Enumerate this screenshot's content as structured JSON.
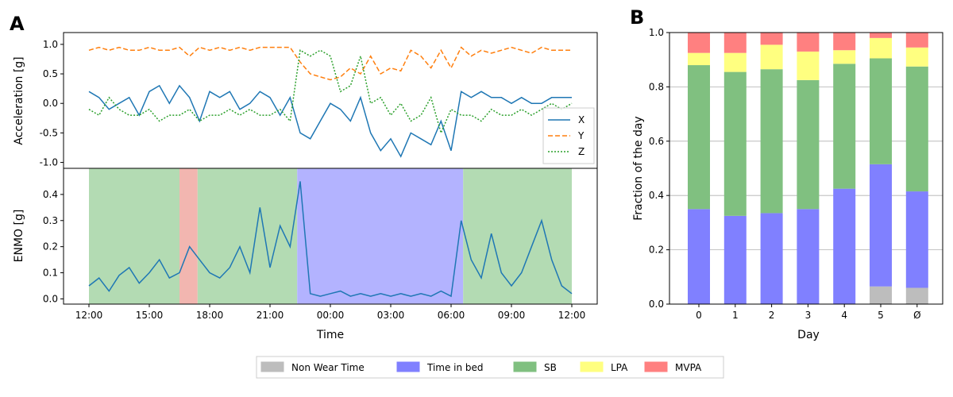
{
  "panels": {
    "a": "A",
    "b": "B"
  },
  "colors": {
    "x": "#1f77b4",
    "y": "#ff7f0e",
    "z": "#2ca02c",
    "nonwear": "#bdbdbd",
    "bed": "#8080ff",
    "sb": "#80c080",
    "lpa": "#ffff80",
    "mvpa": "#ff8080"
  },
  "legend_bottom": {
    "items": [
      {
        "key": "nonwear",
        "label": "Non Wear Time"
      },
      {
        "key": "bed",
        "label": "Time in bed"
      },
      {
        "key": "sb",
        "label": "SB"
      },
      {
        "key": "lpa",
        "label": "LPA"
      },
      {
        "key": "mvpa",
        "label": "MVPA"
      }
    ]
  },
  "chart_data": [
    {
      "type": "line",
      "title": "",
      "xlabel": "",
      "ylabel": "Acceleration [g]",
      "ylim": [
        -1.1,
        1.2
      ],
      "yticks": [
        "-1.0",
        "-0.5",
        "0.0",
        "0.5",
        "1.0"
      ],
      "yticks_values": [
        -1.0,
        -0.5,
        0.0,
        0.5,
        1.0
      ],
      "legend": {
        "placement": "lower-right",
        "entries": [
          "X",
          "Y",
          "Z"
        ]
      },
      "x_time": [
        "12:00",
        "12:30",
        "13:00",
        "13:30",
        "14:00",
        "14:30",
        "15:00",
        "15:30",
        "16:00",
        "16:30",
        "17:00",
        "17:30",
        "18:00",
        "18:30",
        "19:00",
        "19:30",
        "20:00",
        "20:30",
        "21:00",
        "21:30",
        "22:00",
        "22:30",
        "23:00",
        "23:30",
        "00:00",
        "00:30",
        "01:00",
        "01:30",
        "02:00",
        "02:30",
        "03:00",
        "03:30",
        "04:00",
        "04:30",
        "05:00",
        "05:30",
        "06:00",
        "06:30",
        "07:00",
        "07:30",
        "08:00",
        "08:30",
        "09:00",
        "09:30",
        "10:00",
        "10:30",
        "11:00",
        "11:30",
        "12:00"
      ],
      "series": [
        {
          "name": "X",
          "values": [
            0.2,
            0.1,
            -0.1,
            0.0,
            0.1,
            -0.2,
            0.2,
            0.3,
            0.0,
            0.3,
            0.1,
            -0.3,
            0.2,
            0.1,
            0.2,
            -0.1,
            0.0,
            0.2,
            0.1,
            -0.2,
            0.1,
            -0.5,
            -0.6,
            -0.3,
            0.0,
            -0.1,
            -0.3,
            0.1,
            -0.5,
            -0.8,
            -0.6,
            -0.9,
            -0.5,
            -0.6,
            -0.7,
            -0.3,
            -0.8,
            0.2,
            0.1,
            0.2,
            0.1,
            0.1,
            0.0,
            0.1,
            0.0,
            0.0,
            0.1,
            0.1,
            0.1
          ]
        },
        {
          "name": "Y",
          "values": [
            0.9,
            0.95,
            0.9,
            0.95,
            0.9,
            0.9,
            0.95,
            0.9,
            0.9,
            0.95,
            0.8,
            0.95,
            0.9,
            0.95,
            0.9,
            0.95,
            0.9,
            0.95,
            0.95,
            0.95,
            0.95,
            0.7,
            0.5,
            0.45,
            0.4,
            0.45,
            0.6,
            0.5,
            0.8,
            0.5,
            0.6,
            0.55,
            0.9,
            0.8,
            0.6,
            0.9,
            0.6,
            0.95,
            0.8,
            0.9,
            0.85,
            0.9,
            0.95,
            0.9,
            0.85,
            0.95,
            0.9,
            0.9,
            0.9
          ]
        },
        {
          "name": "Z",
          "values": [
            -0.1,
            -0.2,
            0.1,
            -0.1,
            -0.2,
            -0.2,
            -0.1,
            -0.3,
            -0.2,
            -0.2,
            -0.1,
            -0.3,
            -0.2,
            -0.2,
            -0.1,
            -0.2,
            -0.1,
            -0.2,
            -0.2,
            -0.1,
            -0.3,
            0.9,
            0.8,
            0.9,
            0.8,
            0.2,
            0.3,
            0.8,
            0.0,
            0.1,
            -0.2,
            0.0,
            -0.3,
            -0.2,
            0.1,
            -0.5,
            -0.1,
            -0.2,
            -0.2,
            -0.3,
            -0.1,
            -0.2,
            -0.2,
            -0.1,
            -0.2,
            -0.1,
            0.0,
            -0.1,
            0.0
          ]
        }
      ]
    },
    {
      "type": "line",
      "title": "",
      "xlabel": "Time",
      "ylabel": "ENMO [g]",
      "ylim": [
        -0.02,
        0.5
      ],
      "yticks": [
        "0.0",
        "0.1",
        "0.2",
        "0.3",
        "0.4"
      ],
      "yticks_values": [
        0.0,
        0.1,
        0.2,
        0.3,
        0.4
      ],
      "xticks": [
        "12:00",
        "15:00",
        "18:00",
        "21:00",
        "00:00",
        "03:00",
        "06:00",
        "09:00",
        "12:00"
      ],
      "background_bands_hours": [
        {
          "class": "sb",
          "start": 0.0,
          "end": 4.5
        },
        {
          "class": "mvpa",
          "start": 4.5,
          "end": 5.4
        },
        {
          "class": "sb",
          "start": 5.4,
          "end": 10.35
        },
        {
          "class": "bed",
          "start": 10.35,
          "end": 18.6
        },
        {
          "class": "sb",
          "start": 18.6,
          "end": 24.0
        }
      ],
      "series": [
        {
          "name": "ENMO",
          "values": [
            0.05,
            0.08,
            0.03,
            0.09,
            0.12,
            0.06,
            0.1,
            0.15,
            0.08,
            0.1,
            0.2,
            0.15,
            0.1,
            0.08,
            0.12,
            0.2,
            0.1,
            0.35,
            0.12,
            0.28,
            0.2,
            0.45,
            0.02,
            0.01,
            0.02,
            0.03,
            0.01,
            0.02,
            0.01,
            0.02,
            0.01,
            0.02,
            0.01,
            0.02,
            0.01,
            0.03,
            0.01,
            0.3,
            0.15,
            0.08,
            0.25,
            0.1,
            0.05,
            0.1,
            0.2,
            0.3,
            0.15,
            0.05,
            0.02
          ]
        }
      ]
    },
    {
      "type": "bar",
      "stacked": true,
      "title": "",
      "xlabel": "Day",
      "ylabel": "Fraction of the day",
      "ylim": [
        0,
        1.0
      ],
      "yticks": [
        "0.0",
        "0.2",
        "0.4",
        "0.6",
        "0.8",
        "1.0"
      ],
      "yticks_values": [
        0.0,
        0.2,
        0.4,
        0.6,
        0.8,
        1.0
      ],
      "grid": true,
      "categories": [
        "0",
        "1",
        "2",
        "3",
        "4",
        "5",
        "Ø"
      ],
      "series": [
        {
          "name": "Non Wear Time",
          "key": "nonwear",
          "values": [
            0.0,
            0.0,
            0.0,
            0.0,
            0.0,
            0.065,
            0.06
          ]
        },
        {
          "name": "Time in bed",
          "key": "bed",
          "values": [
            0.35,
            0.325,
            0.335,
            0.35,
            0.425,
            0.45,
            0.355
          ]
        },
        {
          "name": "SB",
          "key": "sb",
          "values": [
            0.53,
            0.53,
            0.53,
            0.475,
            0.46,
            0.39,
            0.46
          ]
        },
        {
          "name": "LPA",
          "key": "lpa",
          "values": [
            0.045,
            0.07,
            0.09,
            0.105,
            0.05,
            0.075,
            0.07
          ]
        },
        {
          "name": "MVPA",
          "key": "mvpa",
          "values": [
            0.075,
            0.075,
            0.045,
            0.07,
            0.065,
            0.02,
            0.055
          ]
        }
      ]
    }
  ]
}
